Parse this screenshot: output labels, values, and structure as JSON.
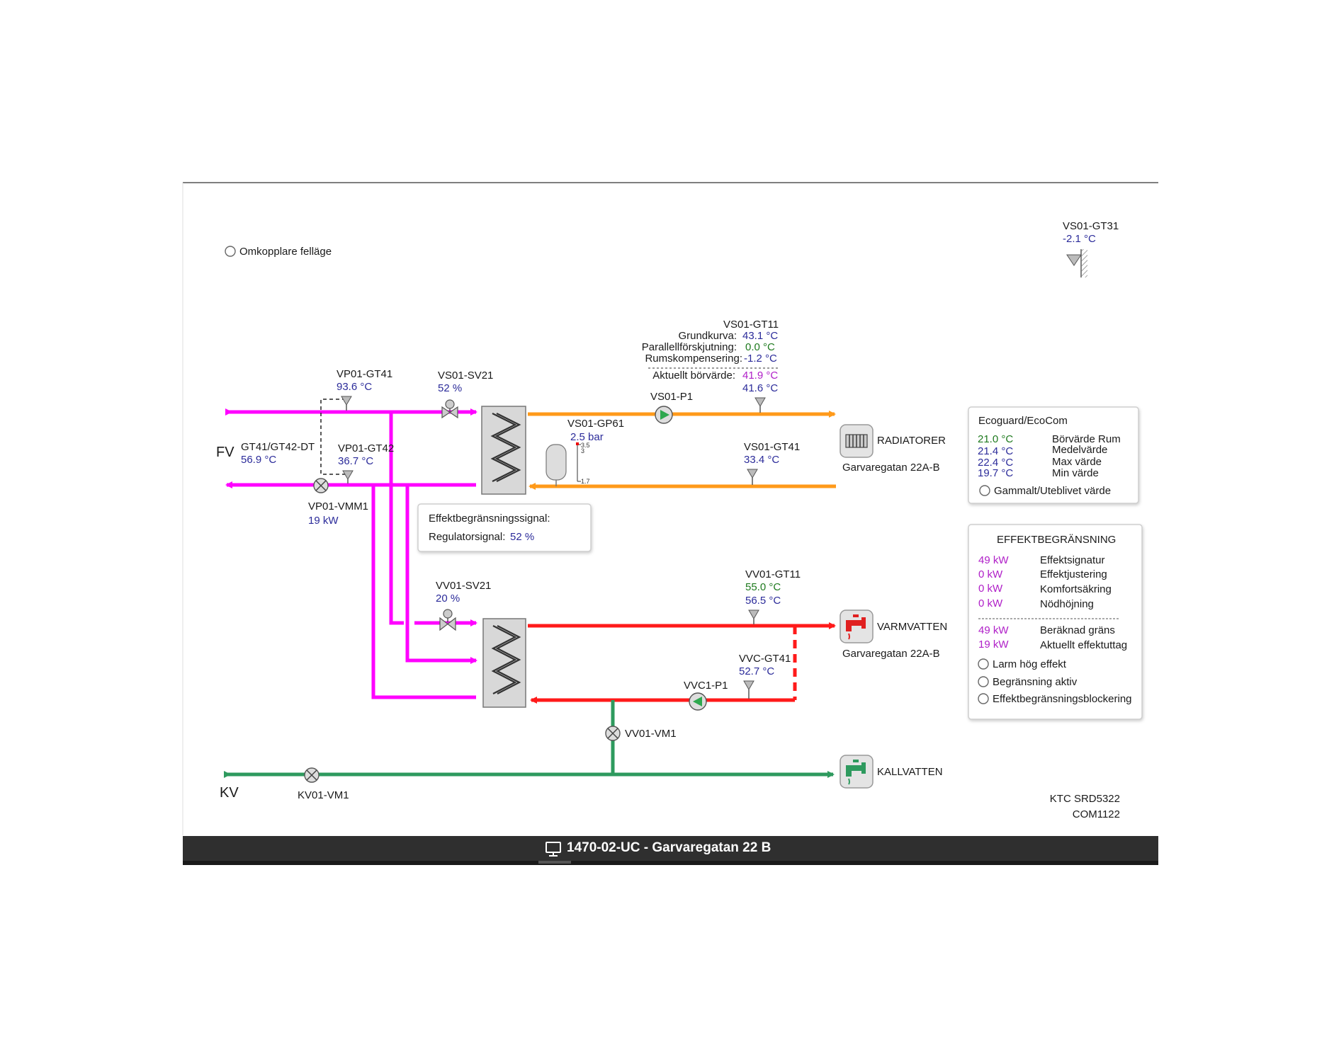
{
  "window_title": "1470-02-UC - Garvaregatan 22 B",
  "colors": {
    "primary_heating": "#ff00ff",
    "radiator_circuit": "#ff9a1a",
    "hot_water": "#ff1a1a",
    "cold_water": "#2e9a5e",
    "value_text": "#2b2b9a",
    "setpoint_text": "#b020c8",
    "ok_text": "#1e7a1e",
    "title_bar": "#2f2f2f"
  },
  "omkopplare": {
    "label": "Omkopplare felläge"
  },
  "outdoor": {
    "tag": "VS01-GT31",
    "value": "-2.1 °C"
  },
  "fv": {
    "label": "FV",
    "gt41": {
      "tag": "VP01-GT41",
      "value": "93.6 °C"
    },
    "gt42": {
      "tag": "VP01-GT42",
      "value": "36.7 °C"
    },
    "dt": {
      "tag": "GT41/GT42-DT",
      "value": "56.9 °C"
    },
    "vmm1": {
      "tag": "VP01-VMM1",
      "value": "19 kW"
    }
  },
  "vs01": {
    "sv21": {
      "tag": "VS01-SV21",
      "value": "52 %"
    },
    "gt11": {
      "tag": "VS01-GT11",
      "rows": [
        {
          "label": "Grundkurva:",
          "value": "43.1 °C"
        },
        {
          "label": "Parallellförskjutning:",
          "value": "0.0 °C"
        },
        {
          "label": "Rumskompensering:",
          "value": "-1.2 °C"
        }
      ],
      "setpoint_label": "Aktuellt börvärde:",
      "setpoint_value": "41.9 °C",
      "actual_value": "41.6 °C"
    },
    "p1": {
      "tag": "VS01-P1"
    },
    "gp61": {
      "tag": "VS01-GP61",
      "value": "2.5 bar",
      "scale_high": "3.5",
      "scale_mid": "3",
      "scale_low": "1.7"
    },
    "gt41": {
      "tag": "VS01-GT41",
      "value": "33.4 °C"
    }
  },
  "radiators": {
    "label": "RADIATORER",
    "address": "Garvaregatan 22A-B"
  },
  "effekt_popup": {
    "title": "Effektbegränsningssignal:",
    "reg_label": "Regulatorsignal:",
    "reg_value": "52 %"
  },
  "vv01": {
    "sv21": {
      "tag": "VV01-SV21",
      "value": "20 %"
    },
    "gt11": {
      "tag": "VV01-GT11",
      "setpoint": "55.0 °C",
      "value": "56.5 °C"
    },
    "vm1": {
      "tag": "VV01-VM1"
    }
  },
  "vvc": {
    "gt41": {
      "tag": "VVC-GT41",
      "value": "52.7 °C"
    },
    "p1": {
      "tag": "VVC1-P1"
    }
  },
  "varmvatten": {
    "label": "VARMVATTEN",
    "address": "Garvaregatan 22A-B"
  },
  "kallvatten": {
    "label": "KALLVATTEN"
  },
  "kv": {
    "label": "KV",
    "vm1": {
      "tag": "KV01-VM1"
    }
  },
  "ecoguard": {
    "title": "Ecoguard/EcoCom",
    "rows": [
      {
        "value": "21.0 °C",
        "label": "Börvärde Rum"
      },
      {
        "value": "21.4 °C",
        "label": "Medelvärde"
      },
      {
        "value": "22.4 °C",
        "label": "Max värde"
      },
      {
        "value": "19.7 °C",
        "label": "Min värde"
      }
    ],
    "status": "Gammalt/Uteblivet värde"
  },
  "effektbegransning": {
    "title": "EFFEKTBEGRÄNSNING",
    "rows": [
      {
        "value": "49 kW",
        "label": "Effektsignatur"
      },
      {
        "value": "0 kW",
        "label": "Effektjustering"
      },
      {
        "value": "0 kW",
        "label": "Komfortsäkring"
      },
      {
        "value": "0 kW",
        "label": "Nödhöjning"
      }
    ],
    "rows2": [
      {
        "value": "49 kW",
        "label": "Beräknad gräns"
      },
      {
        "value": "19 kW",
        "label": "Aktuellt effektuttag"
      }
    ],
    "indicators": [
      {
        "label": "Larm hög effekt"
      },
      {
        "label": "Begränsning aktiv"
      },
      {
        "label": "Effektbegränsningsblockering"
      }
    ]
  },
  "controller": {
    "line1": "KTC SRD5322",
    "line2": "COM1122"
  }
}
